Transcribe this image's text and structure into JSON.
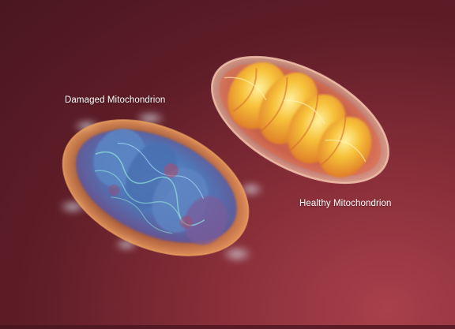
{
  "labels": {
    "damaged": "Damaged Mitochondrion",
    "healthy": "Healthy Mitochondrion"
  },
  "colors": {
    "background": "#6b2230",
    "healthy_core": "#f7c23a",
    "healthy_membrane": "#f2a58a",
    "damaged_core": "#4f78b8",
    "damaged_membrane": "#d58a4a",
    "damaged_glow": "#bfe8ff"
  }
}
